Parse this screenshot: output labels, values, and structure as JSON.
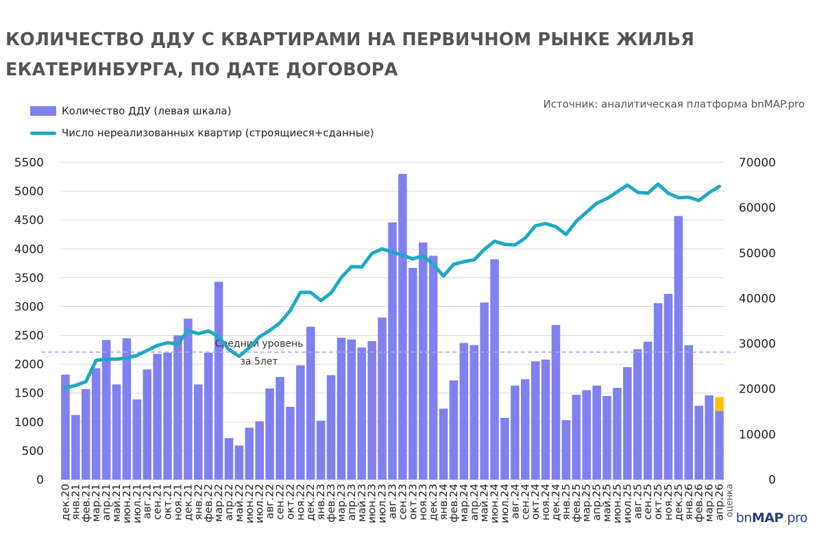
{
  "title_line1": "КОЛИЧЕСТВО ДДУ С КВАРТИРАМИ НА ПЕРВИЧНОМ РЫНКЕ ЖИЛЬЯ",
  "title_line2": "ЕКАТЕРИНБУРГА, ПО ДАТЕ ДОГОВОРА",
  "source": "Источник: аналитическая платформа bnMAP.pro",
  "logo": {
    "prefix": "bn",
    "bold": "MAP",
    "dot": ".",
    "suffix": "pro"
  },
  "colors": {
    "bars": "#8080ee",
    "line": "#1ea9c4",
    "estimate": "#ffc000",
    "avg_line": "#a9abf0",
    "grid": "#d9d9d9",
    "title": "#545454"
  },
  "chart_data": {
    "type": "bar+line",
    "legend": {
      "bars": "Количество ДДУ (левая шкала)",
      "line": "Число нереализованных квартир (строящиеся+сданные)"
    },
    "left_axis": {
      "ticks": [
        "0",
        "500",
        "1000",
        "1500",
        "2000",
        "2500",
        "3000",
        "3500",
        "4000",
        "4500",
        "5000",
        "5500"
      ],
      "ylim": [
        0,
        5500
      ]
    },
    "right_axis": {
      "ticks": [
        "0",
        "10000",
        "20000",
        "30000",
        "40000",
        "50000",
        "60000",
        "70000"
      ],
      "ylim": [
        0,
        70000
      ]
    },
    "categories": [
      "дек.20",
      "янв.21",
      "фев.21",
      "мар.21",
      "апр.21",
      "май.21",
      "июн.21",
      "июл.21",
      "авг.21",
      "сен.21",
      "окт.21",
      "ноя.21",
      "дек.21",
      "янв.22",
      "фев.22",
      "мар.22",
      "апр.22",
      "май.22",
      "июн.22",
      "июл.22",
      "авг.22",
      "сен.22",
      "окт.22",
      "ноя.22",
      "дек.22",
      "янв.23",
      "фев.23",
      "мар.23",
      "апр.23",
      "май.23",
      "июн.23",
      "июл.23",
      "авг.23",
      "сен.23",
      "окт.23",
      "ноя.23",
      "дек.23",
      "янв.24",
      "фев.24",
      "мар.24",
      "апр.24",
      "май.24",
      "июн.24",
      "июл.24",
      "авг.24",
      "сен.24",
      "окт.24",
      "ноя.24",
      "дек.24",
      "янв.25",
      "фев.25",
      "мар.25",
      "апр.25",
      "май.25",
      "июн.25",
      "июл.25",
      "авг.25",
      "сен.25",
      "окт.25",
      "ноя.25",
      "дек.25",
      "янв.26",
      "фев.26",
      "мар.26",
      "апр.26"
    ],
    "last_category_note": "оценка",
    "bars": [
      1820,
      1120,
      1570,
      1930,
      2420,
      1650,
      2450,
      1390,
      1910,
      2180,
      2200,
      2500,
      2790,
      1650,
      2200,
      3430,
      720,
      590,
      900,
      1010,
      1580,
      1780,
      1260,
      1980,
      2650,
      1020,
      1810,
      2460,
      2430,
      2290,
      2400,
      2810,
      4460,
      5300,
      3670,
      4110,
      3880,
      1230,
      1720,
      2370,
      2330,
      3070,
      3820,
      1070,
      1630,
      1740,
      2050,
      2080,
      2680,
      1030,
      1470,
      1550,
      1630,
      1450,
      1590,
      1950,
      2260,
      2390,
      3060,
      3220,
      4570,
      2330,
      1280,
      1460,
      1190
    ],
    "estimate_addition": {
      "category": "апр.26",
      "value": 240
    },
    "line": [
      20200,
      20800,
      21600,
      26300,
      26600,
      26600,
      26800,
      27400,
      28500,
      29600,
      30200,
      29900,
      32900,
      32200,
      32800,
      31500,
      28700,
      27200,
      29100,
      31500,
      32900,
      34600,
      37300,
      41300,
      41300,
      39500,
      41200,
      44600,
      47000,
      46900,
      49900,
      50900,
      50200,
      49500,
      48700,
      49400,
      47500,
      44900,
      47500,
      48100,
      48500,
      50800,
      52600,
      51900,
      51800,
      53300,
      56000,
      56500,
      55800,
      54100,
      57000,
      59000,
      61000,
      62000,
      63500,
      65000,
      63400,
      63200,
      65200,
      63200,
      62200,
      62300,
      61600,
      63300,
      64700
    ],
    "annotation": {
      "text_line1": "Средний уровень",
      "text_line2": "за 5лет",
      "value": 2210
    }
  }
}
